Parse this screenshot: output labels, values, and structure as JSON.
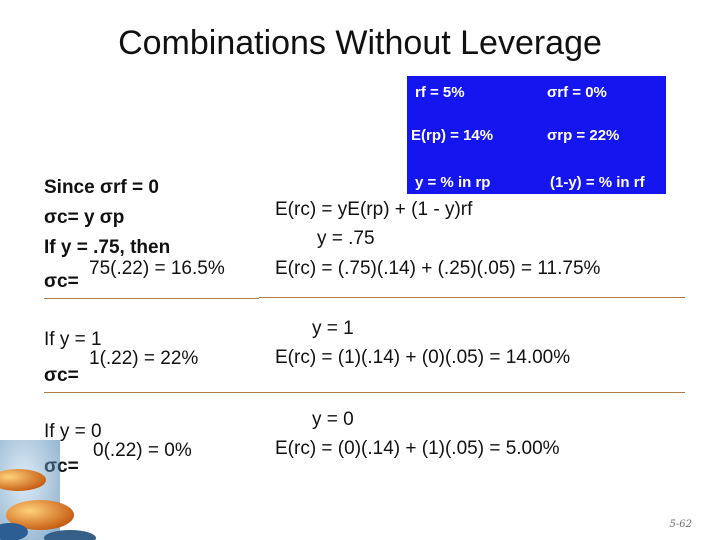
{
  "slide": {
    "title": "Combinations Without Leverage",
    "page_number": "5-62"
  },
  "box": {
    "rf": "rf = 5%",
    "sigma_rf": "σrf = 0%",
    "erp": "E(rp) = 14%",
    "sigma_rp": "σrp = 22%",
    "y_def": "y = % in rp",
    "one_minus_y": "(1-y) = % in rf"
  },
  "left": {
    "l1": "Since σrf = 0",
    "l2": "σc= y σp",
    "l3": "If y = .75, then",
    "l4a": "σc=",
    "l4b": "75(.22) = 16.5%",
    "l5": "If y = 1",
    "l6a": "σc=",
    "l6b": "1(.22) = 22%",
    "l7": "If y = 0",
    "l8a": "σc=",
    "l8b": "0(.22) = 0%"
  },
  "right": {
    "r1": "E(rc) = yE(rp) + (1 - y)rf",
    "r2": "y = .75",
    "r3": "E(rc) = (.75)(.14) + (.25)(.05) = 11.75%",
    "r4": "y = 1",
    "r5": "E(rc) = (1)(.14) + (0)(.05) = 14.00%",
    "r6": "y = 0",
    "r7": "E(rc) = (0)(.14) + (1)(.05) = 5.00%"
  }
}
